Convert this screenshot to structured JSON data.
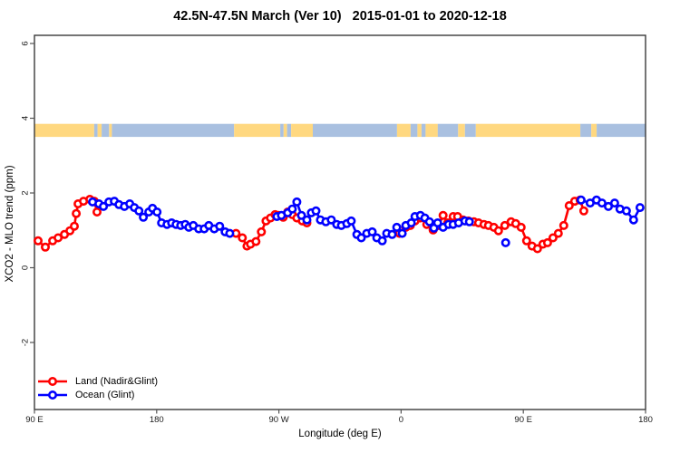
{
  "title": "42.5N-47.5N March (Ver 10)   2015-01-01 to 2020-12-18",
  "axes": {
    "x": {
      "label": "Longitude (deg E)",
      "ticks": [
        {
          "axis_deg": 0,
          "label": "90 E"
        },
        {
          "axis_deg": 90,
          "label": "180"
        },
        {
          "axis_deg": 180,
          "label": "90 W"
        },
        {
          "axis_deg": 270,
          "label": "0"
        },
        {
          "axis_deg": 360,
          "label": "90 E"
        },
        {
          "axis_deg": 450,
          "label": "180"
        }
      ]
    },
    "y": {
      "label": "XCO2 - MLO trend (ppm)",
      "ticks": [
        {
          "value": 6,
          "label": "6"
        },
        {
          "value": 4,
          "label": "4"
        },
        {
          "value": 2,
          "label": "2"
        },
        {
          "value": 0,
          "label": "0"
        },
        {
          "value": -2,
          "label": "-2"
        }
      ]
    }
  },
  "legend": [
    {
      "label": "Land (Nadir&Glint)",
      "color": "#ff0000"
    },
    {
      "label": "Ocean (Glint)",
      "color": "#0000ff"
    }
  ],
  "colors": {
    "land_series": "#ff0000",
    "ocean_series": "#0000ff",
    "band_land": "#ffd880",
    "band_ocean": "#a9c0e0",
    "axis_box": "#3a3a3a",
    "background": "#ffffff"
  },
  "land_ocean_band": {
    "description": "land/ocean strip for 42.5N-47.5N drawn across the top of the plot",
    "y_range": [
      3.5,
      3.85
    ],
    "segments": [
      [
        0,
        44,
        "land"
      ],
      [
        44,
        46.5,
        "ocean"
      ],
      [
        46.5,
        49.5,
        "land"
      ],
      [
        49.5,
        55,
        "ocean"
      ],
      [
        55,
        57,
        "land"
      ],
      [
        57,
        147,
        "ocean"
      ],
      [
        147,
        181,
        "land"
      ],
      [
        181,
        183.5,
        "ocean"
      ],
      [
        183.5,
        186,
        "land"
      ],
      [
        186,
        189,
        "ocean"
      ],
      [
        189,
        205,
        "land"
      ],
      [
        205,
        267,
        "ocean"
      ],
      [
        267,
        277,
        "land"
      ],
      [
        277,
        282,
        "ocean"
      ],
      [
        282,
        285,
        "land"
      ],
      [
        285,
        288,
        "ocean"
      ],
      [
        288,
        297,
        "land"
      ],
      [
        297,
        312,
        "ocean"
      ],
      [
        312,
        317,
        "land"
      ],
      [
        317,
        325,
        "ocean"
      ],
      [
        325,
        402,
        "land"
      ],
      [
        402,
        410,
        "ocean"
      ],
      [
        410,
        414,
        "land"
      ],
      [
        414,
        450,
        "ocean"
      ]
    ]
  },
  "chart_data": {
    "type": "line",
    "title": "42.5N-47.5N March (Ver 10)   2015-01-01 to 2020-12-18",
    "xlabel": "Longitude (deg E)",
    "ylabel": "XCO2 - MLO trend (ppm)",
    "x_axis_note": "x = degrees eastward along the axis from the left edge; left edge = 90E, wrapping through 180, 90W, 0, 90E to 180 (450 degree span)",
    "xlim": [
      0,
      450
    ],
    "ylim": [
      -3.8,
      6.2
    ],
    "grid": false,
    "legend_position": "bottom-left",
    "marker": "open-circle",
    "series": [
      {
        "name": "Land (Nadir&Glint)",
        "color": "#ff0000",
        "runs": [
          [
            [
              2.7,
              0.72
            ],
            [
              8,
              0.55
            ],
            [
              13.4,
              0.72
            ],
            [
              17.4,
              0.8
            ],
            [
              22.1,
              0.89
            ],
            [
              26.1,
              0.99
            ],
            [
              29.4,
              1.11
            ],
            [
              30.8,
              1.45
            ],
            [
              32.1,
              1.71
            ],
            [
              36.1,
              1.78
            ],
            [
              40.8,
              1.83
            ],
            [
              44.1,
              1.78
            ],
            [
              46.1,
              1.49
            ]
          ],
          [
            [
              148.4,
              0.92
            ],
            [
              153.1,
              0.8
            ],
            [
              156.5,
              0.58
            ],
            [
              159.1,
              0.63
            ],
            [
              163.1,
              0.7
            ],
            [
              167.1,
              0.96
            ],
            [
              170.5,
              1.25
            ],
            [
              173.8,
              1.33
            ],
            [
              177.2,
              1.42
            ],
            [
              179.8,
              1.4
            ],
            [
              183.2,
              1.35
            ],
            [
              186.5,
              1.49
            ],
            [
              189.9,
              1.42
            ],
            [
              193.2,
              1.33
            ],
            [
              197.2,
              1.25
            ],
            [
              200.6,
              1.2
            ]
          ],
          [
            [
              268.8,
              0.92
            ],
            [
              273.5,
              1.08
            ],
            [
              276.8,
              1.13
            ],
            [
              280.2,
              1.25
            ],
            [
              284.2,
              1.33
            ],
            [
              288.9,
              1.16
            ],
            [
              293.6,
              1.01
            ],
            [
              297.6,
              1.13
            ],
            [
              300.9,
              1.4
            ],
            [
              304.3,
              1.2
            ],
            [
              308.3,
              1.37
            ],
            [
              311.6,
              1.37
            ],
            [
              315.6,
              1.28
            ],
            [
              319.6,
              1.25
            ],
            [
              323.6,
              1.23
            ],
            [
              327,
              1.2
            ],
            [
              331,
              1.16
            ],
            [
              334.3,
              1.13
            ],
            [
              338.3,
              1.08
            ],
            [
              341.7,
              0.99
            ],
            [
              346.4,
              1.13
            ],
            [
              351,
              1.23
            ],
            [
              354.4,
              1.18
            ],
            [
              358.4,
              1.08
            ],
            [
              362.4,
              0.72
            ],
            [
              366.4,
              0.58
            ],
            [
              370.4,
              0.51
            ],
            [
              374.4,
              0.63
            ],
            [
              377.8,
              0.67
            ],
            [
              381.8,
              0.8
            ],
            [
              385.8,
              0.92
            ],
            [
              389.8,
              1.13
            ],
            [
              393.8,
              1.66
            ],
            [
              397.8,
              1.78
            ],
            [
              401.8,
              1.81
            ],
            [
              404.5,
              1.52
            ]
          ]
        ]
      },
      {
        "name": "Ocean (Glint)",
        "color": "#0000ff",
        "runs": [
          [
            [
              42.8,
              1.76
            ],
            [
              47.5,
              1.71
            ],
            [
              50.8,
              1.64
            ],
            [
              54.8,
              1.76
            ],
            [
              58.8,
              1.78
            ],
            [
              62.2,
              1.69
            ],
            [
              66.2,
              1.64
            ],
            [
              70.2,
              1.71
            ],
            [
              73.6,
              1.61
            ],
            [
              76.9,
              1.52
            ],
            [
              80.2,
              1.35
            ],
            [
              84.2,
              1.49
            ],
            [
              86.9,
              1.59
            ],
            [
              90.3,
              1.49
            ],
            [
              93.6,
              1.2
            ],
            [
              97.6,
              1.16
            ],
            [
              101,
              1.2
            ],
            [
              104.3,
              1.16
            ],
            [
              107.7,
              1.13
            ],
            [
              111,
              1.16
            ],
            [
              113.7,
              1.08
            ],
            [
              117,
              1.13
            ],
            [
              121,
              1.04
            ],
            [
              125,
              1.04
            ],
            [
              128.4,
              1.13
            ],
            [
              132.4,
              1.04
            ],
            [
              136.4,
              1.11
            ],
            [
              140.4,
              0.96
            ],
            [
              143.8,
              0.92
            ]
          ],
          [
            [
              178.5,
              1.37
            ],
            [
              181.9,
              1.4
            ],
            [
              186.5,
              1.47
            ],
            [
              189.9,
              1.57
            ],
            [
              193.2,
              1.76
            ],
            [
              196.6,
              1.4
            ],
            [
              200.6,
              1.28
            ],
            [
              203.9,
              1.47
            ],
            [
              207.3,
              1.52
            ],
            [
              210.6,
              1.28
            ],
            [
              214.6,
              1.23
            ],
            [
              218.6,
              1.28
            ],
            [
              222.6,
              1.16
            ],
            [
              226,
              1.13
            ],
            [
              230,
              1.18
            ],
            [
              233.3,
              1.25
            ],
            [
              237.4,
              0.89
            ],
            [
              240.7,
              0.8
            ],
            [
              244.7,
              0.92
            ],
            [
              248.7,
              0.96
            ],
            [
              252.1,
              0.8
            ],
            [
              256.1,
              0.72
            ],
            [
              259.4,
              0.92
            ],
            [
              263.4,
              0.89
            ],
            [
              266.8,
              1.08
            ],
            [
              270.8,
              0.92
            ],
            [
              273.5,
              1.13
            ],
            [
              277.5,
              1.2
            ],
            [
              280.2,
              1.37
            ],
            [
              284.2,
              1.4
            ],
            [
              287.5,
              1.33
            ],
            [
              290.9,
              1.23
            ],
            [
              294.2,
              1.06
            ],
            [
              296.9,
              1.2
            ],
            [
              300.9,
              1.08
            ],
            [
              304.9,
              1.16
            ],
            [
              308.3,
              1.16
            ],
            [
              312.3,
              1.2
            ],
            [
              317,
              1.25
            ],
            [
              320.3,
              1.23
            ]
          ],
          [
            [
              347,
              0.67
            ]
          ],
          [
            [
              402.5,
              1.81
            ],
            [
              409.2,
              1.73
            ],
            [
              413.9,
              1.81
            ],
            [
              417.9,
              1.73
            ],
            [
              422.6,
              1.64
            ],
            [
              427.2,
              1.73
            ],
            [
              431.2,
              1.57
            ],
            [
              435.9,
              1.52
            ],
            [
              441.2,
              1.28
            ],
            [
              445.9,
              1.61
            ]
          ]
        ]
      }
    ]
  }
}
